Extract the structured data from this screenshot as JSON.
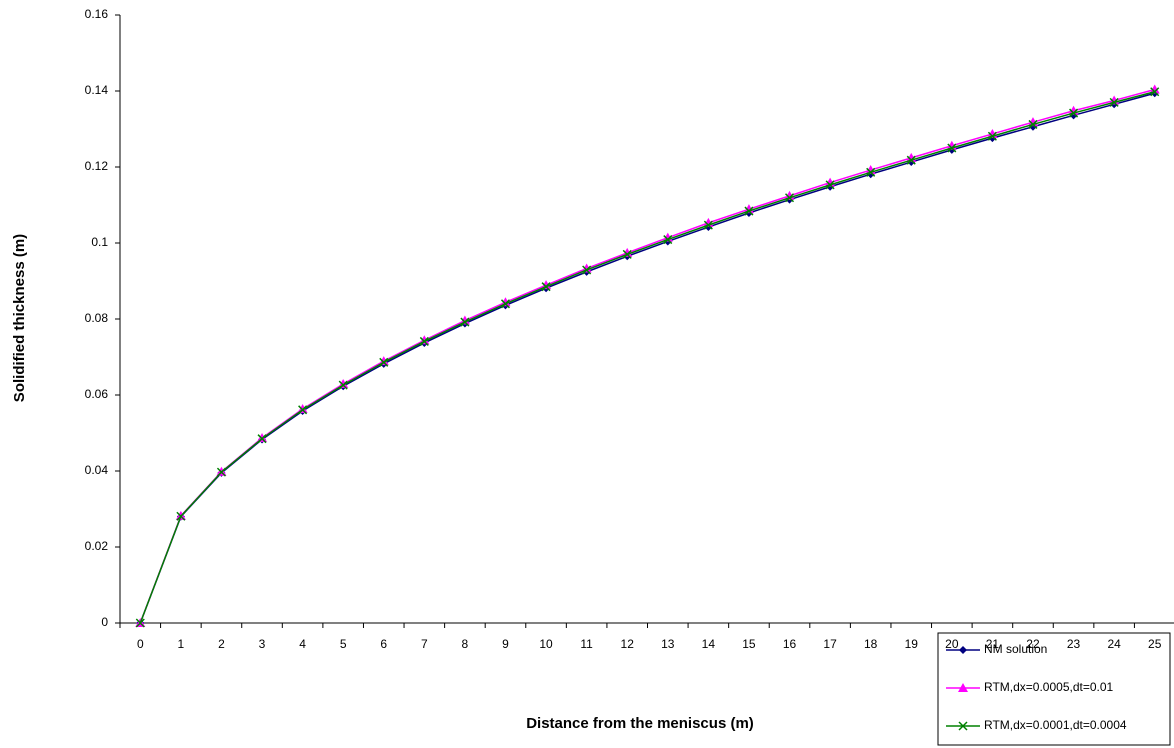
{
  "chart_data": {
    "type": "line",
    "x_label": "Distance from the meniscus (m)",
    "y_label": "Solidified thickness (m)",
    "categories": [
      "0",
      "1",
      "2",
      "3",
      "4",
      "5",
      "6",
      "7",
      "8",
      "9",
      "10",
      "11",
      "12",
      "13",
      "14",
      "15",
      "16",
      "17",
      "18",
      "19",
      "20",
      "21",
      "22",
      "23",
      "24",
      "25"
    ],
    "series": [
      {
        "name": "NM solution",
        "color": "#000080",
        "marker": "diamond",
        "values": [
          0,
          0.028,
          0.0395,
          0.0483,
          0.0558,
          0.0623,
          0.0682,
          0.0737,
          0.0788,
          0.0836,
          0.0881,
          0.0924,
          0.0965,
          0.1004,
          0.1042,
          0.1079,
          0.1114,
          0.1148,
          0.1181,
          0.1213,
          0.1245,
          0.1276,
          0.1306,
          0.1336,
          0.1365,
          0.1394
        ]
      },
      {
        "name": "RTM,dx=0.0005,dt=0.01",
        "color": "#ff00ff",
        "marker": "triangle",
        "values": [
          0,
          0.0282,
          0.0398,
          0.0487,
          0.0563,
          0.0629,
          0.0689,
          0.0744,
          0.0796,
          0.0844,
          0.0889,
          0.0933,
          0.0974,
          0.1014,
          0.1053,
          0.1089,
          0.1124,
          0.1159,
          0.1192,
          0.1224,
          0.1256,
          0.1287,
          0.1318,
          0.1348,
          0.1375,
          0.1404
        ]
      },
      {
        "name": "RTM,dx=0.0001,dt=0.0004",
        "color": "#008000",
        "marker": "x",
        "values": [
          0,
          0.0281,
          0.0397,
          0.0485,
          0.0561,
          0.0626,
          0.0686,
          0.0741,
          0.0792,
          0.084,
          0.0885,
          0.0929,
          0.097,
          0.1009,
          0.1047,
          0.1084,
          0.1119,
          0.1153,
          0.1186,
          0.1218,
          0.125,
          0.1281,
          0.1312,
          0.1342,
          0.137,
          0.1398
        ]
      }
    ],
    "ylim": [
      0,
      0.16
    ],
    "yticks": [
      0,
      0.02,
      0.04,
      0.06,
      0.08,
      0.1,
      0.12,
      0.14,
      0.16
    ],
    "grid": false,
    "legend": "bottom-right"
  }
}
